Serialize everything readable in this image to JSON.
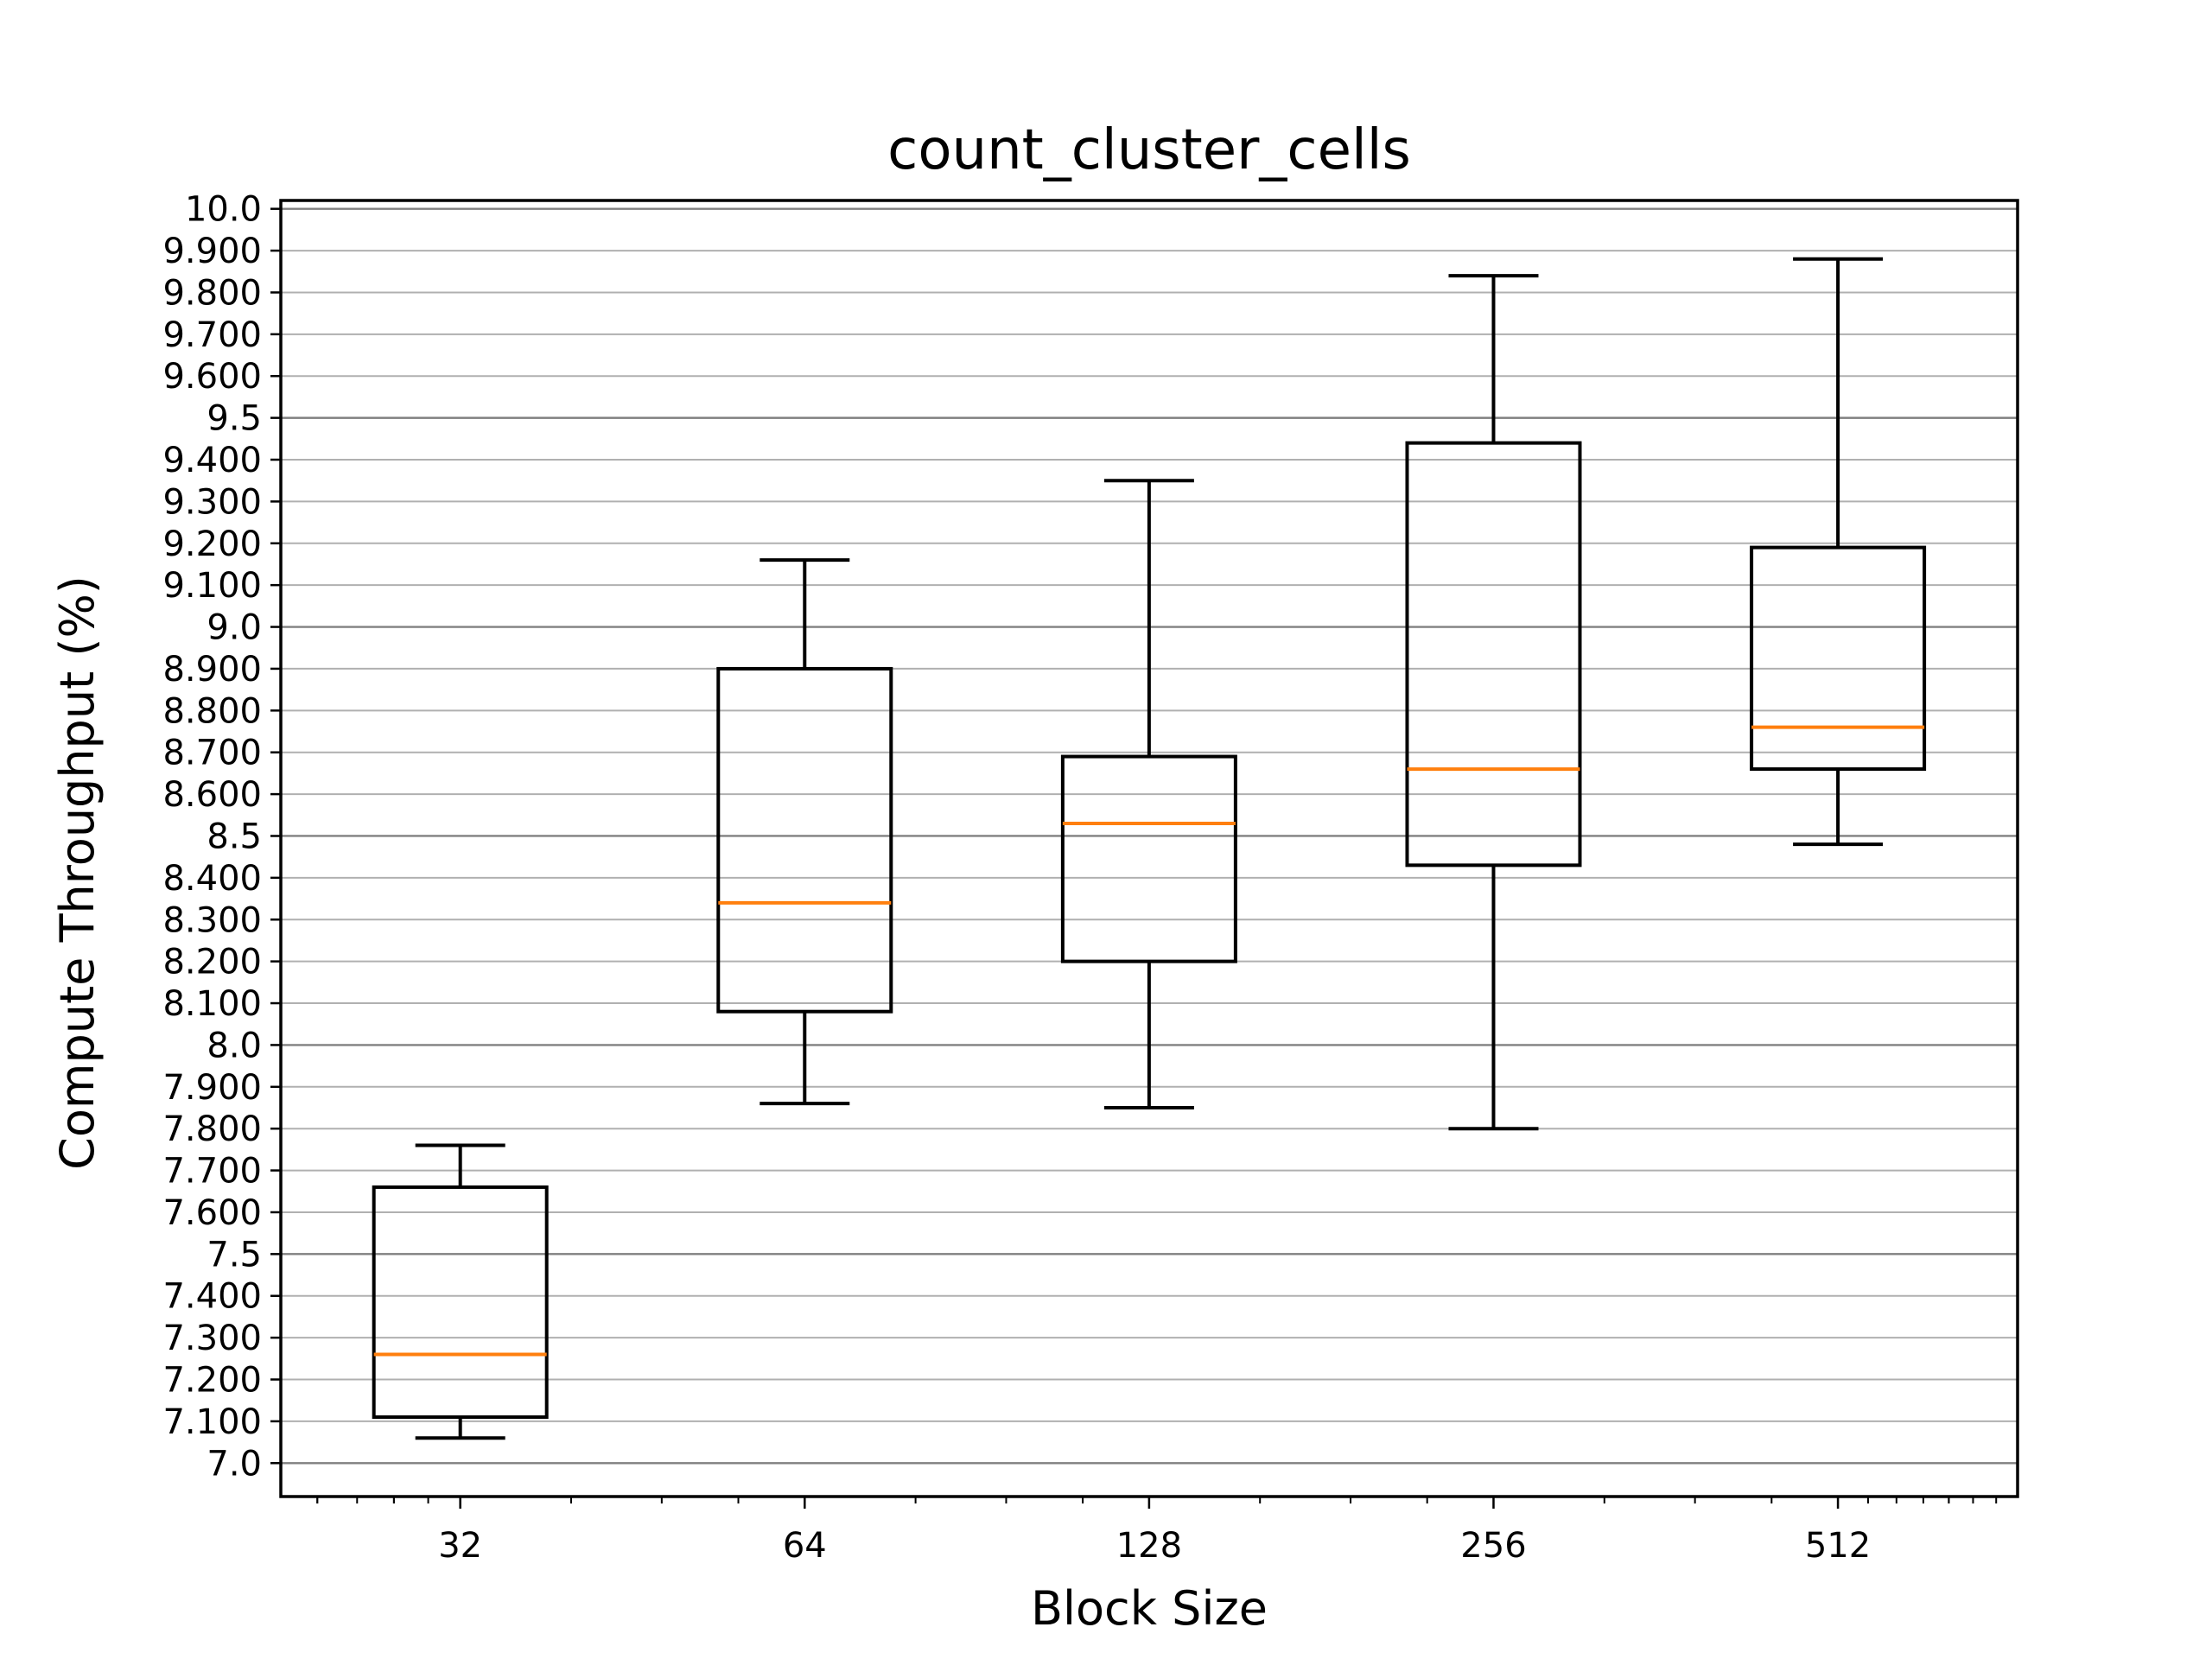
{
  "chart_data": {
    "type": "box",
    "title": "count_cluster_cells",
    "xlabel": "Block Size",
    "ylabel": "Compute Throughput (%)",
    "categories": [
      "32",
      "64",
      "128",
      "256",
      "512"
    ],
    "ylim": [
      6.92,
      10.02
    ],
    "yticks": [
      {
        "value": 7.0,
        "label": "7.0",
        "major": true
      },
      {
        "value": 7.1,
        "label": "7.100",
        "major": false
      },
      {
        "value": 7.2,
        "label": "7.200",
        "major": false
      },
      {
        "value": 7.3,
        "label": "7.300",
        "major": false
      },
      {
        "value": 7.4,
        "label": "7.400",
        "major": false
      },
      {
        "value": 7.5,
        "label": "7.5",
        "major": true
      },
      {
        "value": 7.6,
        "label": "7.600",
        "major": false
      },
      {
        "value": 7.7,
        "label": "7.700",
        "major": false
      },
      {
        "value": 7.8,
        "label": "7.800",
        "major": false
      },
      {
        "value": 7.9,
        "label": "7.900",
        "major": false
      },
      {
        "value": 8.0,
        "label": "8.0",
        "major": true
      },
      {
        "value": 8.1,
        "label": "8.100",
        "major": false
      },
      {
        "value": 8.2,
        "label": "8.200",
        "major": false
      },
      {
        "value": 8.3,
        "label": "8.300",
        "major": false
      },
      {
        "value": 8.4,
        "label": "8.400",
        "major": false
      },
      {
        "value": 8.5,
        "label": "8.5",
        "major": true
      },
      {
        "value": 8.6,
        "label": "8.600",
        "major": false
      },
      {
        "value": 8.7,
        "label": "8.700",
        "major": false
      },
      {
        "value": 8.8,
        "label": "8.800",
        "major": false
      },
      {
        "value": 8.9,
        "label": "8.900",
        "major": false
      },
      {
        "value": 9.0,
        "label": "9.0",
        "major": true
      },
      {
        "value": 9.1,
        "label": "9.100",
        "major": false
      },
      {
        "value": 9.2,
        "label": "9.200",
        "major": false
      },
      {
        "value": 9.3,
        "label": "9.300",
        "major": false
      },
      {
        "value": 9.4,
        "label": "9.400",
        "major": false
      },
      {
        "value": 9.5,
        "label": "9.5",
        "major": true
      },
      {
        "value": 9.6,
        "label": "9.600",
        "major": false
      },
      {
        "value": 9.7,
        "label": "9.700",
        "major": false
      },
      {
        "value": 9.8,
        "label": "9.800",
        "major": false
      },
      {
        "value": 9.9,
        "label": "9.900",
        "major": false
      },
      {
        "value": 10.0,
        "label": "10.0",
        "major": true
      }
    ],
    "boxes": [
      {
        "category": "32",
        "whisker_low": 7.06,
        "q1": 7.11,
        "median": 7.26,
        "q3": 7.66,
        "whisker_high": 7.76
      },
      {
        "category": "64",
        "whisker_low": 7.86,
        "q1": 8.08,
        "median": 8.34,
        "q3": 8.9,
        "whisker_high": 9.16
      },
      {
        "category": "128",
        "whisker_low": 7.85,
        "q1": 8.2,
        "median": 8.53,
        "q3": 8.69,
        "whisker_high": 9.35
      },
      {
        "category": "256",
        "whisker_low": 7.8,
        "q1": 8.43,
        "median": 8.66,
        "q3": 9.44,
        "whisker_high": 9.84
      },
      {
        "category": "512",
        "whisker_low": 8.48,
        "q1": 8.66,
        "median": 8.76,
        "q3": 9.19,
        "whisker_high": 9.88
      }
    ],
    "grid": true,
    "colors": {
      "box": "#000000",
      "median": "#ff7f0e",
      "grid_major": "#808080",
      "grid_minor": "#b0b0b0"
    }
  }
}
